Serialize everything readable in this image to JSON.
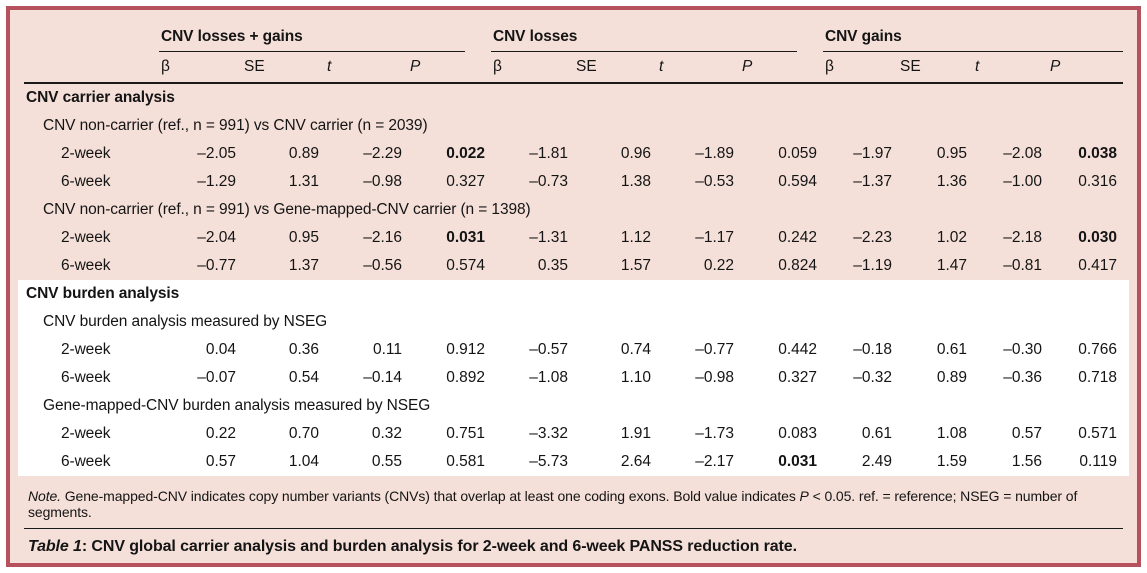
{
  "colors": {
    "border": "#b6525e",
    "shade_pink": "#f5e0d9",
    "shade_white": "#ffffff",
    "text": "#141414"
  },
  "table": {
    "groups": [
      {
        "label": "CNV losses + gains"
      },
      {
        "label": "CNV losses"
      },
      {
        "label": "CNV gains"
      }
    ],
    "subheaders": [
      "β",
      "SE",
      "t",
      "P"
    ],
    "sections": [
      {
        "name": "cnv-carrier-analysis-zone",
        "shade": "pink",
        "rows": [
          {
            "type": "section",
            "label": "CNV carrier analysis"
          },
          {
            "type": "subsection",
            "label": "CNV non-carrier (ref., n = 991) vs CNV carrier (n = 2039)"
          },
          {
            "type": "data",
            "label": "2-week",
            "values": [
              "–2.05",
              "0.89",
              "–2.29",
              "0.022",
              "–1.81",
              "0.96",
              "–1.89",
              "0.059",
              "–1.97",
              "0.95",
              "–2.08",
              "0.038"
            ],
            "bold": [
              3,
              11
            ]
          },
          {
            "type": "data",
            "label": "6-week",
            "values": [
              "–1.29",
              "1.31",
              "–0.98",
              "0.327",
              "–0.73",
              "1.38",
              "–0.53",
              "0.594",
              "–1.37",
              "1.36",
              "–1.00",
              "0.316"
            ],
            "bold": []
          },
          {
            "type": "subsection",
            "label": "CNV non-carrier (ref., n = 991) vs Gene-mapped-CNV carrier (n = 1398)"
          },
          {
            "type": "data",
            "label": "2-week",
            "values": [
              "–2.04",
              "0.95",
              "–2.16",
              "0.031",
              "–1.31",
              "1.12",
              "–1.17",
              "0.242",
              "–2.23",
              "1.02",
              "–2.18",
              "0.030"
            ],
            "bold": [
              3,
              11
            ]
          },
          {
            "type": "data",
            "label": "6-week",
            "values": [
              "–0.77",
              "1.37",
              "–0.56",
              "0.574",
              "0.35",
              "1.57",
              "0.22",
              "0.824",
              "–1.19",
              "1.47",
              "–0.81",
              "0.417"
            ],
            "bold": []
          }
        ]
      },
      {
        "name": "cnv-burden-analysis-zone",
        "shade": "white",
        "rows": [
          {
            "type": "section",
            "label": "CNV burden analysis"
          },
          {
            "type": "subsection",
            "label": "CNV burden analysis measured by NSEG"
          },
          {
            "type": "data",
            "label": "2-week",
            "values": [
              "0.04",
              "0.36",
              "0.11",
              "0.912",
              "–0.57",
              "0.74",
              "–0.77",
              "0.442",
              "–0.18",
              "0.61",
              "–0.30",
              "0.766"
            ],
            "bold": []
          },
          {
            "type": "data",
            "label": "6-week",
            "values": [
              "–0.07",
              "0.54",
              "–0.14",
              "0.892",
              "–1.08",
              "1.10",
              "–0.98",
              "0.327",
              "–0.32",
              "0.89",
              "–0.36",
              "0.718"
            ],
            "bold": []
          },
          {
            "type": "subsection",
            "label": "Gene-mapped-CNV burden analysis measured by NSEG"
          },
          {
            "type": "data",
            "label": "2-week",
            "values": [
              "0.22",
              "0.70",
              "0.32",
              "0.751",
              "–3.32",
              "1.91",
              "–1.73",
              "0.083",
              "0.61",
              "1.08",
              "0.57",
              "0.571"
            ],
            "bold": []
          },
          {
            "type": "data",
            "label": "6-week",
            "values": [
              "0.57",
              "1.04",
              "0.55",
              "0.581",
              "–5.73",
              "2.64",
              "–2.17",
              "0.031",
              "2.49",
              "1.59",
              "1.56",
              "0.119"
            ],
            "bold": [
              7
            ]
          }
        ]
      }
    ]
  },
  "note": {
    "lead": "Note.",
    "body1": " Gene-mapped-CNV indicates copy number variants (CNVs) that overlap at least one coding exons. Bold value indicates ",
    "p_symbol": "P",
    "body2": " < 0.05. ref. = reference; NSEG = number of segments."
  },
  "caption": {
    "label": "Table 1",
    "separator": ": ",
    "text": "CNV global carrier analysis and burden analysis for 2-week and 6-week PANSS reduction rate."
  }
}
